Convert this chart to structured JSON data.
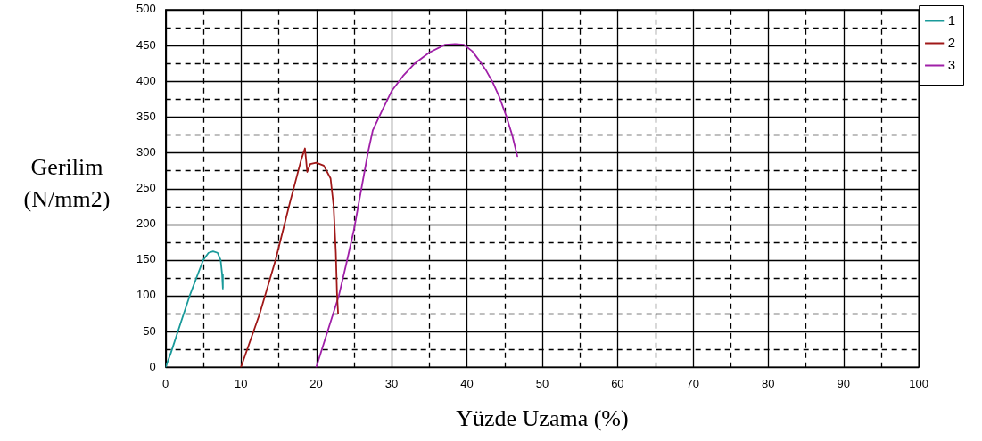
{
  "chart_data": {
    "type": "line",
    "xlabel": "Yüzde Uzama (%)",
    "ylabel": "Gerilim (N/mm2)",
    "xlim": [
      0,
      100
    ],
    "ylim": [
      0,
      500
    ],
    "xticks": [
      0,
      {
        "value": 5,
        "label": null
      },
      10,
      {
        "value": 15,
        "label": null
      },
      20,
      {
        "value": 25,
        "label": null
      },
      30,
      {
        "value": 35,
        "label": null
      },
      40,
      {
        "value": 45,
        "label": null
      },
      50,
      {
        "value": 55,
        "label": null
      },
      60,
      {
        "value": 65,
        "label": null
      },
      70,
      {
        "value": 75,
        "label": null
      },
      80,
      {
        "value": 85,
        "label": null
      },
      90,
      {
        "value": 95,
        "label": null
      },
      100
    ],
    "yticks": [
      0,
      {
        "value": 25,
        "label": null
      },
      50,
      {
        "value": 75,
        "label": null
      },
      100,
      {
        "value": 125,
        "label": null
      },
      150,
      {
        "value": 175,
        "label": null
      },
      200,
      {
        "value": 225,
        "label": null
      },
      250,
      {
        "value": 275,
        "label": null
      },
      300,
      {
        "value": 325,
        "label": null
      },
      350,
      {
        "value": 375,
        "label": null
      },
      400,
      {
        "value": 425,
        "label": null
      },
      450,
      {
        "value": 475,
        "label": null
      },
      500
    ],
    "grid": true,
    "legend": "top right",
    "marker": "none",
    "line_style": "solid",
    "series": [
      {
        "name": "1",
        "color": "#1a9a9a",
        "x": [
          0,
          0.7,
          2,
          3.2,
          4.2,
          5,
          5.7,
          6.3,
          6.9,
          7.3,
          7.5,
          7.6
        ],
        "values": [
          0,
          20,
          62,
          100,
          128,
          150,
          160,
          162,
          160,
          150,
          130,
          110
        ]
      },
      {
        "name": "2",
        "color": "#a01818",
        "x": [
          10,
          12.5,
          14.6,
          16.5,
          18,
          18.5,
          18.8,
          19.2,
          20,
          21,
          21.9,
          22.3,
          22.6,
          22.75,
          22.9
        ],
        "values": [
          0,
          75,
          150,
          230,
          290,
          306,
          273,
          284,
          286,
          282,
          264,
          226,
          160,
          104,
          75
        ]
      },
      {
        "name": "3",
        "color": "#a020a8",
        "x": [
          20,
          21.5,
          23,
          24,
          25,
          26,
          26.9,
          27.5,
          28.8,
          30,
          31.5,
          33,
          35,
          37.1,
          38.5,
          39.6,
          40.7,
          41.7,
          42.6,
          43.4,
          44.3,
          45.2,
          46,
          46.7
        ],
        "values": [
          0,
          50,
          100,
          145,
          192,
          250,
          302,
          331,
          360,
          386,
          407,
          424,
          440,
          451,
          452,
          451,
          442,
          428,
          414,
          399,
          378,
          352,
          325,
          295
        ]
      }
    ]
  }
}
